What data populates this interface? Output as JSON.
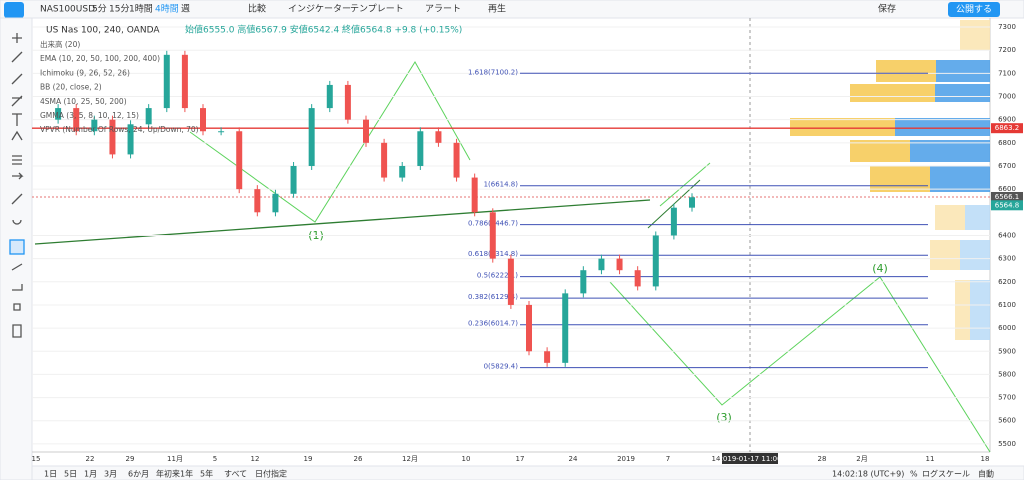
{
  "toolbar": {
    "symbol": "NAS100USD",
    "intervals": [
      "5分",
      "15分",
      "1時間",
      "4時間",
      "週"
    ],
    "buttons": [
      "比較",
      "インジケーター",
      "テンプレート",
      "アラート",
      "再生"
    ],
    "save": "保存",
    "publish": "公開する"
  },
  "legend": {
    "title": "US Nas 100, 240, OANDA",
    "ohlc": "始値6555.0 高値6567.9 安値6542.4 終値6564.8 +9.8 (+0.15%)",
    "indicators": [
      "出来高 (20)",
      "EMA (10, 20, 50, 100, 200, 400)",
      "Ichimoku (9, 26, 52, 26)",
      "BB (20, close, 2)",
      "4SMA (10, 25, 50, 200)",
      "GMMA (3, 5, 8, 10, 12, 15)",
      "VPVR (Number Of Rows, 24, Up/Down, 70)"
    ]
  },
  "chart": {
    "ylim": [
      5465,
      7339
    ],
    "yticks": [
      7300,
      7200,
      7100,
      7000,
      6900,
      6800,
      6700,
      6600,
      6400,
      6300,
      6200,
      6100,
      6000,
      5900,
      5800,
      5700,
      5600,
      5500
    ],
    "price_labels": [
      6863.2,
      6566.1,
      6564.8
    ],
    "fib_levels": [
      {
        "value": 7100.2,
        "label": "1.618(7100.2)"
      },
      {
        "value": 6614.8,
        "label": "1(6614.8)"
      },
      {
        "value": 6446.7,
        "label": "0.786(6446.7)"
      },
      {
        "value": 6314.8,
        "label": "0.618(6314.8)"
      },
      {
        "value": 6222.1,
        "label": "0.5(6222.1)"
      },
      {
        "value": 6129.4,
        "label": "0.382(6129.4)"
      },
      {
        "value": 6014.7,
        "label": "0.236(6014.7)"
      },
      {
        "value": 5829.4,
        "label": "0(5829.4)"
      }
    ],
    "waves": [
      "(1)",
      "(3)",
      "(4)"
    ],
    "closes": [
      6900,
      6950,
      6850,
      6900,
      6750,
      6880,
      6950,
      7180,
      6950,
      6850,
      6850,
      6600,
      6500,
      6580,
      6700,
      6950,
      7050,
      6900,
      6800,
      6650,
      6700,
      6850,
      6800,
      6650,
      6500,
      6300,
      6100,
      5900,
      5850,
      6150,
      6250,
      6300,
      6250,
      6180,
      6400,
      6520,
      6565
    ],
    "time_ticks": [
      "15",
      "22",
      "29",
      "11月",
      "5",
      "12",
      "19",
      "26",
      "12月",
      "10",
      "17",
      "24",
      "2019",
      "7",
      "14",
      "28",
      "2月",
      "11",
      "18"
    ],
    "crosshair_time": "2019-01-17 11:00"
  },
  "bottom_bar": {
    "ranges": [
      "1日",
      "5日",
      "1月",
      "3月",
      "6か月",
      "年初来",
      "1年",
      "5年",
      "すべて"
    ],
    "custom": "日付指定",
    "clock": "14:02:18 (UTC+9)",
    "options": [
      "%",
      "ログスケール",
      "自動"
    ]
  }
}
